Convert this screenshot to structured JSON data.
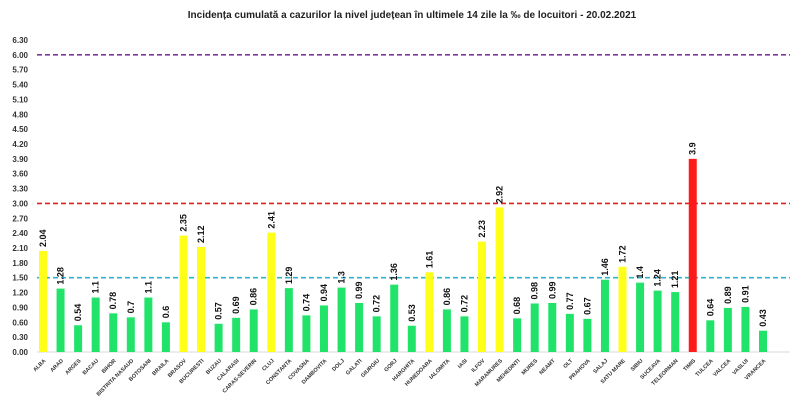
{
  "chart_data": {
    "type": "bar",
    "title": "Incidența cumulată a cazurilor la nivel județean în ultimele 14 zile la ‰ de locuitori - 20.02.2021",
    "xlabel": "",
    "ylabel": "",
    "ylim": [
      0,
      6.3
    ],
    "ytick_step": 0.3,
    "yticks": [
      "0.00",
      "0.30",
      "0.60",
      "0.90",
      "1.20",
      "1.50",
      "1.80",
      "2.10",
      "2.40",
      "2.70",
      "3.00",
      "3.30",
      "3.60",
      "3.90",
      "4.20",
      "4.50",
      "4.80",
      "5.10",
      "5.40",
      "5.70",
      "6.00",
      "6.30"
    ],
    "grid": false,
    "categories": [
      "ALBA",
      "ARAD",
      "ARGES",
      "BACAU",
      "BIHOR",
      "BISTRITA NASAUD",
      "BOTOSANI",
      "BRAILA",
      "BRASOV",
      "BUCURESTI",
      "BUZAU",
      "CALARASI",
      "CARAS-SEVERIN",
      "CLUJ",
      "CONSTANTA",
      "COVASNA",
      "DAMBOVITA",
      "DOLJ",
      "GALATI",
      "GIURGIU",
      "GORJ",
      "HARGHITA",
      "HUNEDOARA",
      "IALOMITA",
      "IASI",
      "ILFOV",
      "MARAMURES",
      "MEHEDINTI",
      "MURES",
      "NEAMT",
      "OLT",
      "PRAHOVA",
      "SALAJ",
      "SATU MARE",
      "SIBIU",
      "SUCEAVA",
      "TELEORMAN",
      "TIMIS",
      "TULCEA",
      "VALCEA",
      "VASLUI",
      "VRANCEA"
    ],
    "values": [
      2.04,
      1.28,
      0.54,
      1.1,
      0.78,
      0.7,
      1.1,
      0.6,
      2.35,
      2.12,
      0.57,
      0.69,
      0.86,
      2.41,
      1.29,
      0.74,
      0.94,
      1.3,
      0.99,
      0.72,
      1.36,
      0.53,
      1.61,
      0.86,
      0.72,
      2.23,
      2.92,
      0.68,
      0.98,
      0.99,
      0.77,
      0.67,
      1.46,
      1.72,
      1.4,
      1.24,
      1.21,
      3.9,
      0.64,
      0.89,
      0.91,
      0.43
    ],
    "data_labels": [
      "2.04",
      "1.28",
      "0.54",
      "1.1",
      "0.78",
      "0.7",
      "1.1",
      "0.6",
      "2.35",
      "2.12",
      "0.57",
      "0.69",
      "0.86",
      "2.41",
      "1.29",
      "0.74",
      "0.94",
      "1.3",
      "0.99",
      "0.72",
      "1.36",
      "0.53",
      "1.61",
      "0.86",
      "0.72",
      "2.23",
      "2.92",
      "0.68",
      "0.98",
      "0.99",
      "0.77",
      "0.67",
      "1.46",
      "1.72",
      "1.4",
      "1.24",
      "1.21",
      "3.9",
      "0.64",
      "0.89",
      "0.91",
      "0.43"
    ],
    "bar_colors": {
      "low": "#22e36a",
      "medium": "#ffff1a",
      "high": "#ff1a1a"
    },
    "thresholds": [
      {
        "value": 1.5,
        "color": "#2ab7c9",
        "style": "dashed"
      },
      {
        "value": 3.0,
        "color": "#e02020",
        "style": "dashed"
      },
      {
        "value": 6.0,
        "color": "#7a3a9a",
        "style": "dashed"
      }
    ]
  }
}
